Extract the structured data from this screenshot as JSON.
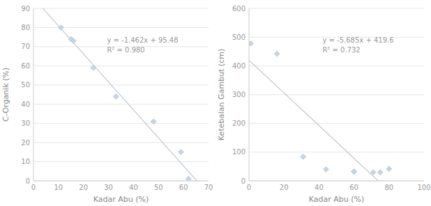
{
  "chart_data": [
    {
      "type": "scatter",
      "x": [
        11,
        15,
        16,
        24,
        33,
        48,
        59,
        62
      ],
      "values": [
        80,
        74,
        73,
        59,
        44,
        31,
        15,
        1
      ],
      "color": "#c8d4e3",
      "marker": "diamond",
      "trend_line": {
        "slope": -1.462,
        "intercept": 95.48,
        "color": "#c0c8d0"
      },
      "equation": "y = -1.462x + 95.48",
      "r_squared": "R² = 0.980",
      "xlabel": "Kadar Abu (%)",
      "ylabel": "C-Organik (%)",
      "xlim": [
        0,
        70
      ],
      "ylim": [
        0,
        90
      ],
      "xticks": [
        0,
        10,
        20,
        30,
        40,
        50,
        60,
        70
      ],
      "yticks": [
        0,
        10,
        20,
        30,
        40,
        50,
        60,
        70,
        80,
        90
      ],
      "grid": true
    },
    {
      "type": "scatter",
      "x": [
        1,
        16,
        31,
        44,
        60,
        60,
        71,
        75,
        80
      ],
      "values": [
        478,
        442,
        84,
        40,
        32,
        32,
        30,
        30,
        42
      ],
      "color": "#c8d4e3",
      "marker": "diamond",
      "trend_line": {
        "slope": -5.685,
        "intercept": 419.6,
        "color": "#c0c8d0"
      },
      "equation": "y = -5.685x + 419.6",
      "r_squared": "R² = 0.732",
      "xlabel": "Kadar Abu (%)",
      "ylabel": "Ketebalan Gambut (cm)",
      "xlim": [
        0,
        100
      ],
      "ylim": [
        0,
        600
      ],
      "xticks": [
        0,
        20,
        40,
        60,
        80,
        100
      ],
      "yticks": [
        0,
        100,
        200,
        300,
        400,
        500,
        600
      ],
      "grid": true
    }
  ]
}
